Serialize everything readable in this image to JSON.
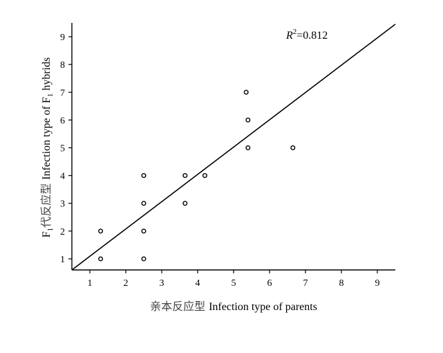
{
  "chart_data": {
    "type": "scatter",
    "title": "",
    "xlabel_cn": "亲本反应型",
    "xlabel_en": "Infection type of parents",
    "ylabel_cn": "代反应型",
    "ylabel_prefix": "F",
    "ylabel_sub": "1",
    "ylabel_en_pre": "Infection type of F",
    "ylabel_en_sub": "1",
    "ylabel_en_post": "hybrids",
    "xlim": [
      0.5,
      9.5
    ],
    "ylim": [
      0.6,
      9.5
    ],
    "xticks": [
      1,
      2,
      3,
      4,
      5,
      6,
      7,
      8,
      9
    ],
    "yticks": [
      1,
      2,
      3,
      4,
      5,
      6,
      7,
      8,
      9
    ],
    "points": [
      {
        "x": 1.3,
        "y": 2
      },
      {
        "x": 1.3,
        "y": 1
      },
      {
        "x": 2.5,
        "y": 4
      },
      {
        "x": 2.5,
        "y": 3
      },
      {
        "x": 2.5,
        "y": 2
      },
      {
        "x": 2.5,
        "y": 1
      },
      {
        "x": 3.65,
        "y": 4
      },
      {
        "x": 3.65,
        "y": 3
      },
      {
        "x": 4.2,
        "y": 4
      },
      {
        "x": 5.35,
        "y": 7
      },
      {
        "x": 5.4,
        "y": 6
      },
      {
        "x": 5.4,
        "y": 5
      },
      {
        "x": 6.65,
        "y": 5
      }
    ],
    "fit_line": {
      "x": [
        0.5,
        9.5
      ],
      "y": [
        0.6,
        9.45
      ]
    },
    "annotation": {
      "r_label": "R",
      "r_sup": "2",
      "value": "=0.812"
    },
    "grid": false,
    "legend": "none"
  }
}
